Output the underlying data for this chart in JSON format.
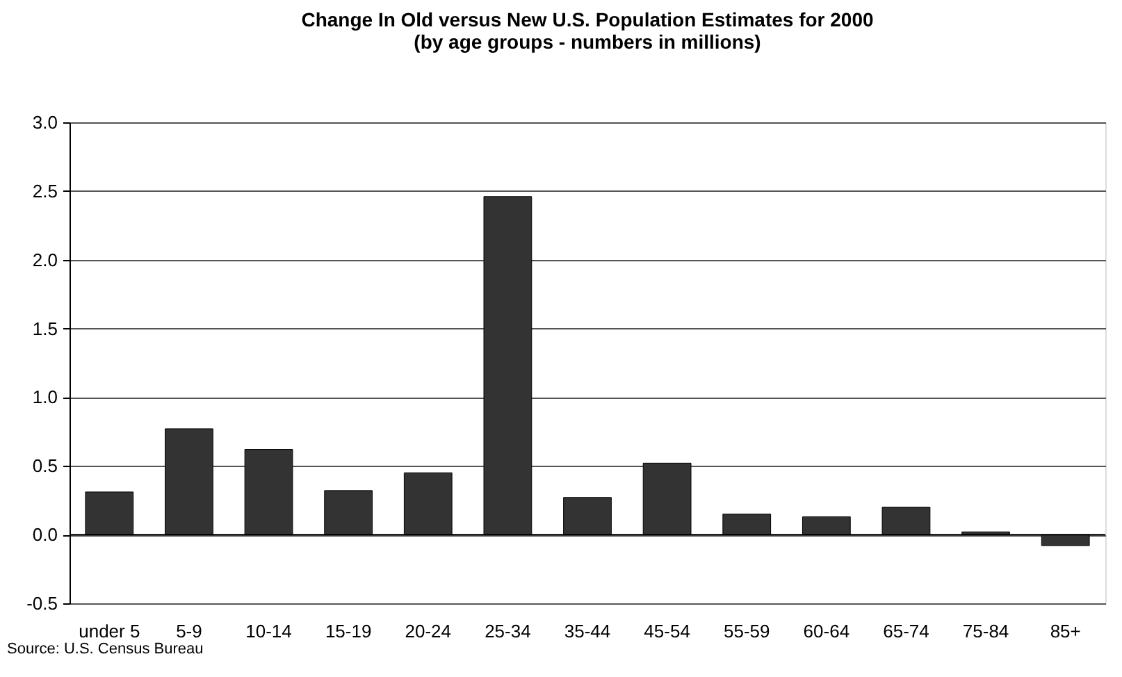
{
  "chart_data": {
    "type": "bar",
    "title": "Change In Old versus New U.S. Population Estimates for 2000\n(by age groups - numbers in millions)",
    "categories": [
      "under 5",
      "5-9",
      "10-14",
      "15-19",
      "20-24",
      "25-34",
      "35-44",
      "45-54",
      "55-59",
      "60-64",
      "65-74",
      "75-84",
      "85+"
    ],
    "values": [
      0.31,
      0.77,
      0.62,
      0.32,
      0.45,
      2.46,
      0.27,
      0.52,
      0.15,
      0.13,
      0.2,
      0.02,
      -0.08
    ],
    "color": "#333333",
    "ylim": [
      -0.5,
      3.0
    ],
    "yticks": [
      {
        "value": -0.5,
        "label": "-0.5"
      },
      {
        "value": 0,
        "label": "0.0"
      },
      {
        "value": 0.5,
        "label": "0.5"
      },
      {
        "value": 1,
        "label": "1.0"
      },
      {
        "value": 1.5,
        "label": "1.5"
      },
      {
        "value": 2,
        "label": "2.0"
      },
      {
        "value": 2.5,
        "label": "2.5"
      },
      {
        "value": 3,
        "label": "3.0"
      }
    ],
    "grid": "y",
    "annotations": [
      "Source: U.S. Census Bureau"
    ]
  }
}
